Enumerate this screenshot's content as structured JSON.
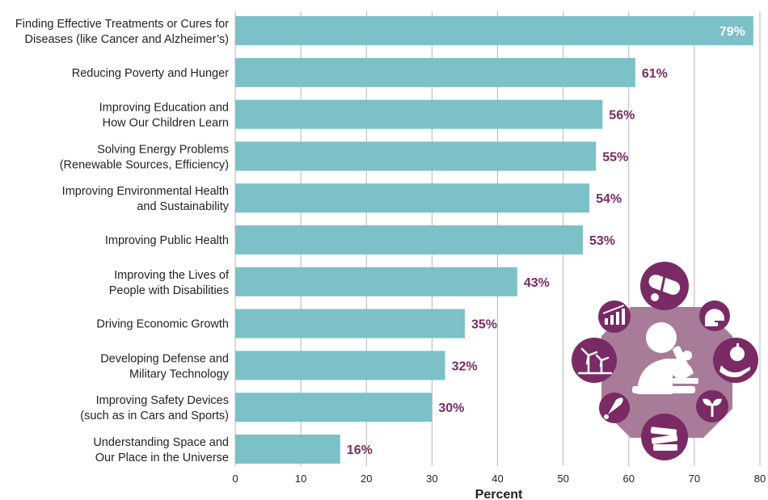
{
  "chart_data": {
    "type": "bar",
    "orientation": "horizontal",
    "categories": [
      [
        "Finding Effective Treatments or Cures for",
        "Diseases (like Cancer and Alzheimer’s)"
      ],
      [
        "Reducing Poverty and Hunger"
      ],
      [
        "Improving Education and",
        "How Our Children Learn"
      ],
      [
        "Solving Energy Problems",
        "(Renewable Sources, Efficiency)"
      ],
      [
        "Improving Environmental Health",
        "and Sustainability"
      ],
      [
        "Improving Public Health"
      ],
      [
        "Improving the Lives of",
        "People with Disabilities"
      ],
      [
        "Driving Economic Growth"
      ],
      [
        "Developing Defense and",
        "Military Technology"
      ],
      [
        "Improving Safety Devices",
        "(such as in Cars and Sports)"
      ],
      [
        "Understanding Space and",
        "Our Place in the Universe"
      ]
    ],
    "values": [
      79,
      61,
      56,
      55,
      54,
      53,
      43,
      35,
      32,
      30,
      16
    ],
    "value_labels": [
      "79%",
      "61%",
      "56%",
      "55%",
      "54%",
      "53%",
      "43%",
      "35%",
      "32%",
      "30%",
      "16%"
    ],
    "xlabel": "Percent",
    "xlim": [
      0,
      80
    ],
    "xticks": [
      0,
      10,
      20,
      30,
      40,
      50,
      60,
      70,
      80
    ],
    "grid": true,
    "colors": {
      "bar": "#7bc1c7",
      "value_label": "#7a2a64",
      "value_label_inside": "#ffffff",
      "grid": "#b5b5b5",
      "icon_primary": "#7a2a64",
      "icon_secondary": "#a87b99"
    }
  },
  "illustration": {
    "icons": [
      "scientist-microscope-icon",
      "pills-icon",
      "football-helmet-icon",
      "apple-hand-icon",
      "sprout-icon",
      "books-icon",
      "rocket-icon",
      "wind-turbine-icon",
      "bar-chart-growth-icon"
    ]
  }
}
